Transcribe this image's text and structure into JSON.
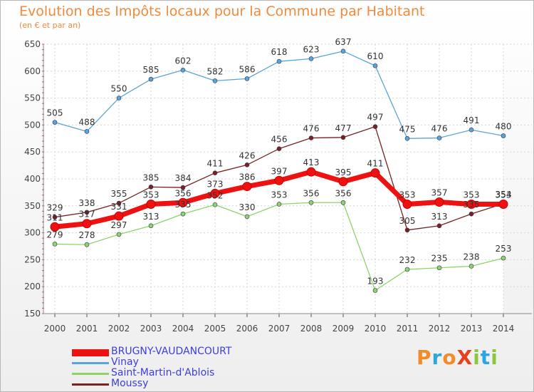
{
  "header": {
    "title": "Evolution des Impôts locaux pour la Commune par Habitant",
    "subtitle": "(en € et par an)"
  },
  "brand": {
    "text": "ProXiti",
    "colors": [
      "#f28c28",
      "#2aa7e0",
      "#f28c28",
      "#e8401c",
      "#8cc63f",
      "#2aa7e0",
      "#8cc63f"
    ]
  },
  "chart_data": {
    "type": "line",
    "x": [
      2000,
      2001,
      2002,
      2003,
      2004,
      2005,
      2006,
      2007,
      2008,
      2009,
      2010,
      2011,
      2012,
      2013,
      2014
    ],
    "ylim": [
      150,
      650
    ],
    "yticks": [
      150,
      200,
      250,
      300,
      350,
      400,
      450,
      500,
      550,
      600,
      650
    ],
    "grid": true,
    "legend_position": "bottom-left",
    "series": [
      {
        "name": "Vinay",
        "color": "#5aa5d8",
        "values": [
          505,
          488,
          550,
          585,
          602,
          582,
          586,
          618,
          623,
          637,
          610,
          475,
          476,
          491,
          480
        ]
      },
      {
        "name": "Saint-Martin-d'Ablois",
        "color": "#8fd36b",
        "values": [
          279,
          278,
          297,
          313,
          335,
          352,
          330,
          353,
          356,
          356,
          193,
          232,
          235,
          238,
          253
        ]
      },
      {
        "name": "Moussy",
        "color": "#7a2222",
        "values": [
          329,
          338,
          355,
          385,
          384,
          411,
          426,
          456,
          476,
          477,
          497,
          305,
          313,
          335,
          354
        ]
      },
      {
        "name": "BRUGNY-VAUDANCOURT",
        "color": "#ee1111",
        "values": [
          311,
          317,
          331,
          353,
          356,
          373,
          386,
          397,
          413,
          395,
          411,
          353,
          357,
          353,
          353
        ]
      }
    ]
  }
}
